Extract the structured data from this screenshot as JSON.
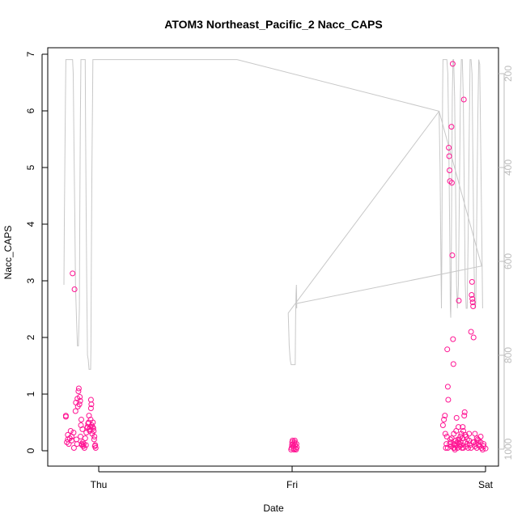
{
  "chart_data": {
    "type": "scatter",
    "title": "ATOM3 Northeast_Pacific_2 Nacc_CAPS",
    "xlabel": "Date",
    "ylabel": "Nacc_CAPS",
    "x_ticks": [
      "Thu",
      "Fri",
      "Sat"
    ],
    "y_ticks": [
      "0",
      "1",
      "2",
      "3",
      "4",
      "5",
      "6",
      "7"
    ],
    "y2_ticks": [
      "200",
      "400",
      "600",
      "800",
      "1000"
    ],
    "ylim": [
      0,
      7
    ],
    "y2lim": [
      1000,
      170
    ],
    "xlim_days": [
      -0.2,
      2.02
    ],
    "colors": {
      "points": "#ff1493",
      "altitude": "#c8c8c8",
      "axis": "#000000",
      "right_axis": "#bdbdbd"
    },
    "points": [
      [
        -0.17,
        0.6
      ],
      [
        -0.17,
        0.62
      ],
      [
        -0.165,
        0.15
      ],
      [
        -0.16,
        0.2
      ],
      [
        -0.16,
        0.28
      ],
      [
        -0.155,
        0.12
      ],
      [
        -0.15,
        0.22
      ],
      [
        -0.145,
        0.35
      ],
      [
        -0.14,
        0.25
      ],
      [
        -0.14,
        0.18
      ],
      [
        -0.135,
        3.13
      ],
      [
        -0.13,
        0.32
      ],
      [
        -0.128,
        0.05
      ],
      [
        -0.125,
        2.85
      ],
      [
        -0.12,
        0.7
      ],
      [
        -0.118,
        0.85
      ],
      [
        -0.115,
        0.2
      ],
      [
        -0.112,
        0.12
      ],
      [
        -0.11,
        0.92
      ],
      [
        -0.108,
        0.78
      ],
      [
        -0.105,
        1.05
      ],
      [
        -0.103,
        1.1
      ],
      [
        -0.1,
        0.82
      ],
      [
        -0.098,
        0.95
      ],
      [
        -0.096,
        0.88
      ],
      [
        -0.094,
        0.25
      ],
      [
        -0.092,
        0.45
      ],
      [
        -0.09,
        0.55
      ],
      [
        -0.088,
        0.12
      ],
      [
        -0.086,
        0.1
      ],
      [
        -0.084,
        0.38
      ],
      [
        -0.082,
        0.15
      ],
      [
        -0.08,
        0.08
      ],
      [
        -0.078,
        0.12
      ],
      [
        -0.074,
        0.05
      ],
      [
        -0.07,
        0.22
      ],
      [
        -0.066,
        0.1
      ],
      [
        -0.064,
        0.32
      ],
      [
        -0.06,
        0.4
      ],
      [
        -0.058,
        0.42
      ],
      [
        -0.055,
        0.48
      ],
      [
        -0.052,
        0.5
      ],
      [
        -0.05,
        0.62
      ],
      [
        -0.048,
        0.38
      ],
      [
        -0.046,
        0.35
      ],
      [
        -0.044,
        0.42
      ],
      [
        -0.042,
        0.55
      ],
      [
        -0.04,
        0.75
      ],
      [
        -0.04,
        0.9
      ],
      [
        -0.038,
        0.82
      ],
      [
        -0.036,
        0.45
      ],
      [
        -0.034,
        0.3
      ],
      [
        -0.032,
        0.42
      ],
      [
        -0.03,
        0.5
      ],
      [
        -0.028,
        0.4
      ],
      [
        -0.026,
        0.35
      ],
      [
        -0.024,
        0.2
      ],
      [
        -0.022,
        0.25
      ],
      [
        -0.02,
        0.08
      ],
      [
        -0.018,
        0.1
      ],
      [
        -0.016,
        0.05
      ],
      [
        0.995,
        0.02
      ],
      [
        0.997,
        0.05
      ],
      [
        0.999,
        0.1
      ],
      [
        1.0,
        0.15
      ],
      [
        1.002,
        0.18
      ],
      [
        1.004,
        0.12
      ],
      [
        1.006,
        0.08
      ],
      [
        1.008,
        0.05
      ],
      [
        1.01,
        0.02
      ],
      [
        1.012,
        0.15
      ],
      [
        1.014,
        0.18
      ],
      [
        1.016,
        0.1
      ],
      [
        1.018,
        0.04
      ],
      [
        1.02,
        0.02
      ],
      [
        1.022,
        0.12
      ],
      [
        1.024,
        0.06
      ],
      [
        1.78,
        0.45
      ],
      [
        1.785,
        0.55
      ],
      [
        1.79,
        0.62
      ],
      [
        1.792,
        0.3
      ],
      [
        1.795,
        0.05
      ],
      [
        1.798,
        0.12
      ],
      [
        1.8,
        0.25
      ],
      [
        1.802,
        1.79
      ],
      [
        1.805,
        1.13
      ],
      [
        1.807,
        0.9
      ],
      [
        1.81,
        5.35
      ],
      [
        1.812,
        5.2
      ],
      [
        1.814,
        4.95
      ],
      [
        1.816,
        4.76
      ],
      [
        1.818,
        0.2
      ],
      [
        1.82,
        0.15
      ],
      [
        1.822,
        0.08
      ],
      [
        1.824,
        5.72
      ],
      [
        1.826,
        4.73
      ],
      [
        1.828,
        3.45
      ],
      [
        1.83,
        6.83
      ],
      [
        1.832,
        1.97
      ],
      [
        1.834,
        1.53
      ],
      [
        1.836,
        0.3
      ],
      [
        1.838,
        0.12
      ],
      [
        1.84,
        0.05
      ],
      [
        1.842,
        0.02
      ],
      [
        1.845,
        0.18
      ],
      [
        1.848,
        0.35
      ],
      [
        1.85,
        0.58
      ],
      [
        1.852,
        0.1
      ],
      [
        1.855,
        0.05
      ],
      [
        1.858,
        0.2
      ],
      [
        1.86,
        0.42
      ],
      [
        1.862,
        2.65
      ],
      [
        1.865,
        0.12
      ],
      [
        1.868,
        0.08
      ],
      [
        1.87,
        0.25
      ],
      [
        1.872,
        0.15
      ],
      [
        1.875,
        0.1
      ],
      [
        1.878,
        0.05
      ],
      [
        1.88,
        0.22
      ],
      [
        1.882,
        0.42
      ],
      [
        1.885,
        0.35
      ],
      [
        1.888,
        6.2
      ],
      [
        1.89,
        0.62
      ],
      [
        1.892,
        0.68
      ],
      [
        1.895,
        0.15
      ],
      [
        1.898,
        0.08
      ],
      [
        1.9,
        0.25
      ],
      [
        1.905,
        0.12
      ],
      [
        1.91,
        0.05
      ],
      [
        1.915,
        0.3
      ],
      [
        1.92,
        0.1
      ],
      [
        1.925,
        2.1
      ],
      [
        1.928,
        2.75
      ],
      [
        1.93,
        2.98
      ],
      [
        1.932,
        2.68
      ],
      [
        1.934,
        2.62
      ],
      [
        1.936,
        2.55
      ],
      [
        1.938,
        2.0
      ],
      [
        1.94,
        0.15
      ],
      [
        1.945,
        0.08
      ],
      [
        1.95,
        0.12
      ],
      [
        1.955,
        0.05
      ],
      [
        1.96,
        0.2
      ],
      [
        1.965,
        0.1
      ],
      [
        1.97,
        0.08
      ],
      [
        1.975,
        0.15
      ],
      [
        1.98,
        0.05
      ],
      [
        1.985,
        0.02
      ],
      [
        1.99,
        0.08
      ],
      [
        2.0,
        0.04
      ],
      [
        1.99,
        0.12
      ],
      [
        1.975,
        0.25
      ],
      [
        1.965,
        0.18
      ],
      [
        1.955,
        0.22
      ],
      [
        1.945,
        0.3
      ],
      [
        1.935,
        0.15
      ],
      [
        1.925,
        0.05
      ],
      [
        1.915,
        0.18
      ],
      [
        1.905,
        0.2
      ],
      [
        1.895,
        0.28
      ],
      [
        1.885,
        0.05
      ],
      [
        1.875,
        0.3
      ],
      [
        1.865,
        0.2
      ],
      [
        1.855,
        0.15
      ],
      [
        1.845,
        0.1
      ],
      [
        1.835,
        0.05
      ],
      [
        1.825,
        0.22
      ],
      [
        1.815,
        0.12
      ],
      [
        1.805,
        0.05
      ]
    ],
    "altitude": [
      [
        -0.18,
        650
      ],
      [
        -0.178,
        520
      ],
      [
        -0.175,
        380
      ],
      [
        -0.172,
        250
      ],
      [
        -0.17,
        170
      ],
      [
        -0.165,
        170
      ],
      [
        -0.16,
        170
      ],
      [
        -0.155,
        170
      ],
      [
        -0.15,
        170
      ],
      [
        -0.145,
        170
      ],
      [
        -0.14,
        170
      ],
      [
        -0.135,
        170
      ],
      [
        -0.132,
        200
      ],
      [
        -0.128,
        350
      ],
      [
        -0.124,
        500
      ],
      [
        -0.12,
        650
      ],
      [
        -0.115,
        720
      ],
      [
        -0.11,
        780
      ],
      [
        -0.105,
        780
      ],
      [
        -0.1,
        700
      ],
      [
        -0.098,
        500
      ],
      [
        -0.095,
        300
      ],
      [
        -0.092,
        170
      ],
      [
        -0.088,
        170
      ],
      [
        -0.085,
        170
      ],
      [
        -0.08,
        170
      ],
      [
        -0.075,
        170
      ],
      [
        -0.07,
        170
      ],
      [
        -0.068,
        300
      ],
      [
        -0.065,
        500
      ],
      [
        -0.062,
        650
      ],
      [
        -0.058,
        800
      ],
      [
        -0.054,
        810
      ],
      [
        -0.05,
        830
      ],
      [
        -0.046,
        830
      ],
      [
        -0.042,
        830
      ],
      [
        -0.04,
        780
      ],
      [
        -0.038,
        600
      ],
      [
        -0.035,
        400
      ],
      [
        -0.032,
        250
      ],
      [
        -0.03,
        170
      ],
      [
        0.715,
        170
      ],
      [
        1.76,
        280
      ],
      [
        0.98,
        710
      ],
      [
        0.985,
        780
      ],
      [
        0.99,
        810
      ],
      [
        0.995,
        820
      ],
      [
        1.0,
        820
      ],
      [
        1.004,
        820
      ],
      [
        1.008,
        820
      ],
      [
        1.012,
        820
      ],
      [
        1.016,
        820
      ],
      [
        1.018,
        720
      ],
      [
        1.02,
        670
      ],
      [
        1.022,
        650
      ],
      [
        1.024,
        690
      ],
      [
        1.024,
        700
      ],
      [
        1.02,
        690
      ],
      [
        1.98,
        610
      ],
      [
        1.76,
        280
      ],
      [
        1.765,
        400
      ],
      [
        1.768,
        550
      ],
      [
        1.772,
        700
      ],
      [
        1.774,
        580
      ],
      [
        1.776,
        400
      ],
      [
        1.778,
        250
      ],
      [
        1.78,
        170
      ],
      [
        1.785,
        170
      ],
      [
        1.79,
        170
      ],
      [
        1.795,
        170
      ],
      [
        1.8,
        170
      ],
      [
        1.805,
        200
      ],
      [
        1.81,
        350
      ],
      [
        1.815,
        550
      ],
      [
        1.818,
        700
      ],
      [
        1.82,
        720
      ],
      [
        1.822,
        650
      ],
      [
        1.825,
        450
      ],
      [
        1.828,
        250
      ],
      [
        1.832,
        170
      ],
      [
        1.835,
        170
      ],
      [
        1.84,
        250
      ],
      [
        1.845,
        450
      ],
      [
        1.85,
        650
      ],
      [
        1.855,
        700
      ],
      [
        1.86,
        650
      ],
      [
        1.865,
        450
      ],
      [
        1.87,
        250
      ],
      [
        1.875,
        170
      ],
      [
        1.88,
        170
      ],
      [
        1.885,
        250
      ],
      [
        1.89,
        450
      ],
      [
        1.895,
        650
      ],
      [
        1.9,
        700
      ],
      [
        1.905,
        700
      ],
      [
        1.91,
        550
      ],
      [
        1.915,
        350
      ],
      [
        1.92,
        170
      ],
      [
        1.925,
        170
      ],
      [
        1.93,
        200
      ],
      [
        1.935,
        400
      ],
      [
        1.94,
        600
      ],
      [
        1.945,
        700
      ],
      [
        1.95,
        690
      ],
      [
        1.955,
        500
      ],
      [
        1.96,
        300
      ],
      [
        1.965,
        170
      ],
      [
        1.97,
        180
      ],
      [
        1.975,
        350
      ],
      [
        1.98,
        520
      ],
      [
        1.985,
        700
      ]
    ]
  }
}
